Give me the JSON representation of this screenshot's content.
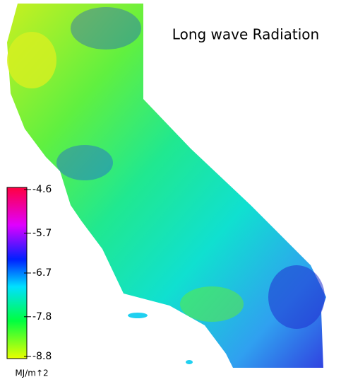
{
  "title": "Long wave Radiation",
  "colorbar": {
    "range": [
      -8.8,
      -4.6
    ],
    "ticks": [
      -4.6,
      -5.7,
      -6.7,
      -7.8,
      -8.8
    ],
    "unit": "MJ/m↑2"
  }
}
